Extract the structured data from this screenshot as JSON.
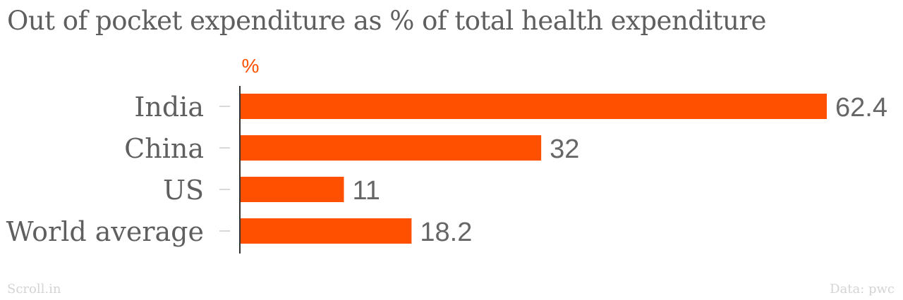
{
  "title": "Out of pocket expenditure as % of total health expenditure",
  "footer": {
    "source_label": "Scroll.in",
    "data_credit": "Data: pwc"
  },
  "colors": {
    "bar": "#ff5000",
    "unit": "#ff5000",
    "text": "#5f5f5f",
    "value_text": "#666666",
    "footer": "#d4d4d4",
    "axis": "#333333"
  },
  "chart_data": {
    "type": "bar",
    "orientation": "horizontal",
    "title": "Out of pocket expenditure as % of total health expenditure",
    "unit_label": "%",
    "categories": [
      "India",
      "China",
      "US",
      "World average"
    ],
    "values": [
      62.4,
      32,
      11,
      18.2
    ],
    "value_labels": [
      "62.4",
      "32",
      "11",
      "18.2"
    ],
    "xlim": [
      0,
      62.4
    ],
    "grid": false,
    "legend": false
  }
}
